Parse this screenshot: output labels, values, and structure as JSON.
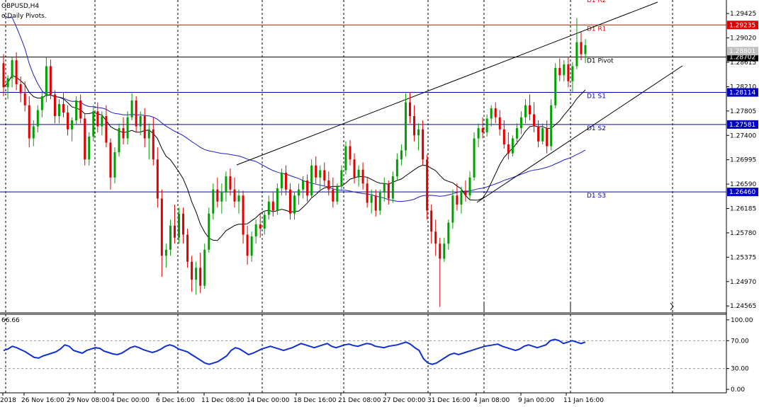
{
  "window": {
    "title": "GBPUSD,H4",
    "indicator_label": "o Daily Pivots.",
    "rsi_value_label": "66.66"
  },
  "colors": {
    "bull": "#00a000",
    "bear": "#e00000",
    "pivot_red": "#e00000",
    "pivot_blue": "#0000c0",
    "ma_blue": "#2020c0",
    "ma_black": "#000000",
    "rsi": "#1030d0",
    "grid": "#000000"
  },
  "chart_data": {
    "type": "candlestick",
    "symbol": "GBPUSD",
    "timeframe": "H4",
    "ylim": [
      1.2445,
      1.2965
    ],
    "price_ticks": [
      "1.29425",
      "1.29020",
      "1.28615",
      "1.28210",
      "1.27805",
      "1.27400",
      "1.26995",
      "1.26590",
      "1.26185",
      "1.25780",
      "1.25375",
      "1.24970",
      "1.24565"
    ],
    "time_labels": [
      "2018",
      "26 Nov 16:00",
      "29 Nov 08:00",
      "4 Dec 00:00",
      "6 Dec 16:00",
      "11 Dec 08:00",
      "14 Dec 00:00",
      "18 Dec 16:00",
      "21 Dec 08:00",
      "27 Dec 00:00",
      "31 Dec 16:00",
      "4 Jan 08:00",
      "9 Jan 00:00",
      "11 Jan 16:00"
    ],
    "pivots": [
      {
        "name": "D1 R2",
        "value": "",
        "price": 1.2982,
        "color": "red",
        "label_only": true
      },
      {
        "name": "D1 R1",
        "value": "1.29235",
        "price": 1.29235,
        "color": "red"
      },
      {
        "name": "D1 Pivot",
        "value": "1.28702",
        "price": 1.28702,
        "color": "black"
      },
      {
        "name": "D1 S1",
        "value": "1.28114",
        "price": 1.28114,
        "color": "blue"
      },
      {
        "name": "D1 S2",
        "value": "1.27581",
        "price": 1.27581,
        "color": "blue"
      },
      {
        "name": "D1 S3",
        "value": "1.26460",
        "price": 1.2646,
        "color": "blue"
      }
    ],
    "current_price": "1.28801",
    "rsi": {
      "ylim": [
        -5,
        108
      ],
      "ticks": [
        "100.00",
        "70.00",
        "30.00",
        "0.00"
      ],
      "levels": [
        70,
        30
      ],
      "values": [
        56,
        58,
        62,
        60,
        57,
        54,
        50,
        46,
        45,
        48,
        50,
        52,
        54,
        58,
        64,
        62,
        56,
        54,
        52,
        56,
        58,
        60,
        59,
        55,
        53,
        51,
        50,
        52,
        56,
        60,
        62,
        60,
        57,
        55,
        53,
        55,
        58,
        62,
        64,
        62,
        58,
        56,
        54,
        50,
        46,
        42,
        38,
        36,
        38,
        40,
        44,
        48,
        56,
        60,
        58,
        54,
        50,
        52,
        55,
        58,
        60,
        62,
        60,
        58,
        56,
        58,
        60,
        63,
        66,
        64,
        62,
        60,
        62,
        64,
        66,
        62,
        60,
        62,
        64,
        65,
        63,
        62,
        64,
        66,
        65,
        62,
        61,
        60,
        62,
        63,
        64,
        66,
        68,
        65,
        60,
        56,
        44,
        38,
        36,
        38,
        42,
        46,
        50,
        52,
        50,
        52,
        54,
        56,
        58,
        60,
        62,
        63,
        64,
        65,
        62,
        60,
        58,
        56,
        58,
        62,
        64,
        62,
        60,
        62,
        64,
        70,
        72,
        70,
        66,
        68,
        70,
        68,
        66,
        68
      ],
      "current": "66.66"
    },
    "candles": [
      {
        "o": 1.286,
        "h": 1.2875,
        "l": 1.2805,
        "c": 1.282
      },
      {
        "o": 1.282,
        "h": 1.284,
        "l": 1.28,
        "c": 1.2835
      },
      {
        "o": 1.2835,
        "h": 1.287,
        "l": 1.282,
        "c": 1.2865
      },
      {
        "o": 1.2865,
        "h": 1.2878,
        "l": 1.2815,
        "c": 1.2825
      },
      {
        "o": 1.2825,
        "h": 1.2838,
        "l": 1.2795,
        "c": 1.281
      },
      {
        "o": 1.281,
        "h": 1.283,
        "l": 1.278,
        "c": 1.279
      },
      {
        "o": 1.279,
        "h": 1.2805,
        "l": 1.272,
        "c": 1.2735
      },
      {
        "o": 1.2735,
        "h": 1.2765,
        "l": 1.2722,
        "c": 1.2755
      },
      {
        "o": 1.2755,
        "h": 1.279,
        "l": 1.2745,
        "c": 1.2782
      },
      {
        "o": 1.2782,
        "h": 1.2815,
        "l": 1.277,
        "c": 1.2805
      },
      {
        "o": 1.2805,
        "h": 1.287,
        "l": 1.2795,
        "c": 1.2855
      },
      {
        "o": 1.2855,
        "h": 1.2866,
        "l": 1.28,
        "c": 1.2808
      },
      {
        "o": 1.2808,
        "h": 1.2815,
        "l": 1.276,
        "c": 1.2772
      },
      {
        "o": 1.2772,
        "h": 1.28,
        "l": 1.276,
        "c": 1.2792
      },
      {
        "o": 1.2792,
        "h": 1.2812,
        "l": 1.277,
        "c": 1.2778
      },
      {
        "o": 1.2778,
        "h": 1.279,
        "l": 1.274,
        "c": 1.275
      },
      {
        "o": 1.275,
        "h": 1.277,
        "l": 1.273,
        "c": 1.2765
      },
      {
        "o": 1.2765,
        "h": 1.2805,
        "l": 1.2758,
        "c": 1.2798
      },
      {
        "o": 1.2798,
        "h": 1.2808,
        "l": 1.276,
        "c": 1.2768
      },
      {
        "o": 1.2768,
        "h": 1.2775,
        "l": 1.269,
        "c": 1.27
      },
      {
        "o": 1.27,
        "h": 1.2745,
        "l": 1.269,
        "c": 1.2738
      },
      {
        "o": 1.2738,
        "h": 1.279,
        "l": 1.273,
        "c": 1.278
      },
      {
        "o": 1.278,
        "h": 1.2795,
        "l": 1.2745,
        "c": 1.2755
      },
      {
        "o": 1.2755,
        "h": 1.278,
        "l": 1.274,
        "c": 1.2772
      },
      {
        "o": 1.2772,
        "h": 1.279,
        "l": 1.272,
        "c": 1.2728
      },
      {
        "o": 1.2728,
        "h": 1.2735,
        "l": 1.265,
        "c": 1.267
      },
      {
        "o": 1.267,
        "h": 1.272,
        "l": 1.266,
        "c": 1.2712
      },
      {
        "o": 1.2712,
        "h": 1.276,
        "l": 1.2705,
        "c": 1.2752
      },
      {
        "o": 1.2752,
        "h": 1.277,
        "l": 1.2725,
        "c": 1.2735
      },
      {
        "o": 1.2735,
        "h": 1.278,
        "l": 1.2725,
        "c": 1.277
      },
      {
        "o": 1.277,
        "h": 1.281,
        "l": 1.2765,
        "c": 1.2798
      },
      {
        "o": 1.2798,
        "h": 1.2805,
        "l": 1.2745,
        "c": 1.2755
      },
      {
        "o": 1.2755,
        "h": 1.278,
        "l": 1.274,
        "c": 1.2772
      },
      {
        "o": 1.2772,
        "h": 1.2785,
        "l": 1.272,
        "c": 1.2735
      },
      {
        "o": 1.2735,
        "h": 1.276,
        "l": 1.27,
        "c": 1.275
      },
      {
        "o": 1.275,
        "h": 1.277,
        "l": 1.269,
        "c": 1.27
      },
      {
        "o": 1.27,
        "h": 1.272,
        "l": 1.262,
        "c": 1.2635
      },
      {
        "o": 1.2635,
        "h": 1.265,
        "l": 1.2505,
        "c": 1.254
      },
      {
        "o": 1.254,
        "h": 1.256,
        "l": 1.252,
        "c": 1.255
      },
      {
        "o": 1.255,
        "h": 1.26,
        "l": 1.254,
        "c": 1.259
      },
      {
        "o": 1.259,
        "h": 1.2625,
        "l": 1.256,
        "c": 1.257
      },
      {
        "o": 1.257,
        "h": 1.262,
        "l": 1.256,
        "c": 1.261
      },
      {
        "o": 1.261,
        "h": 1.262,
        "l": 1.256,
        "c": 1.2575
      },
      {
        "o": 1.2575,
        "h": 1.2585,
        "l": 1.252,
        "c": 1.253
      },
      {
        "o": 1.253,
        "h": 1.254,
        "l": 1.248,
        "c": 1.25
      },
      {
        "o": 1.25,
        "h": 1.253,
        "l": 1.2475,
        "c": 1.252
      },
      {
        "o": 1.252,
        "h": 1.2545,
        "l": 1.2478,
        "c": 1.249
      },
      {
        "o": 1.249,
        "h": 1.256,
        "l": 1.2485,
        "c": 1.255
      },
      {
        "o": 1.255,
        "h": 1.262,
        "l": 1.2545,
        "c": 1.261
      },
      {
        "o": 1.261,
        "h": 1.266,
        "l": 1.26,
        "c": 1.265
      },
      {
        "o": 1.265,
        "h": 1.267,
        "l": 1.262,
        "c": 1.263
      },
      {
        "o": 1.263,
        "h": 1.266,
        "l": 1.261,
        "c": 1.2645
      },
      {
        "o": 1.2645,
        "h": 1.268,
        "l": 1.263,
        "c": 1.2672
      },
      {
        "o": 1.2672,
        "h": 1.2685,
        "l": 1.264,
        "c": 1.265
      },
      {
        "o": 1.265,
        "h": 1.267,
        "l": 1.262,
        "c": 1.263
      },
      {
        "o": 1.263,
        "h": 1.265,
        "l": 1.261,
        "c": 1.264
      },
      {
        "o": 1.264,
        "h": 1.2648,
        "l": 1.256,
        "c": 1.2575
      },
      {
        "o": 1.2575,
        "h": 1.259,
        "l": 1.2525,
        "c": 1.254
      },
      {
        "o": 1.254,
        "h": 1.258,
        "l": 1.253,
        "c": 1.2572
      },
      {
        "o": 1.2572,
        "h": 1.26,
        "l": 1.256,
        "c": 1.2592
      },
      {
        "o": 1.2592,
        "h": 1.261,
        "l": 1.257,
        "c": 1.2585
      },
      {
        "o": 1.2585,
        "h": 1.2615,
        "l": 1.2575,
        "c": 1.2608
      },
      {
        "o": 1.2608,
        "h": 1.264,
        "l": 1.26,
        "c": 1.263
      },
      {
        "o": 1.263,
        "h": 1.2645,
        "l": 1.2605,
        "c": 1.2615
      },
      {
        "o": 1.2615,
        "h": 1.266,
        "l": 1.2608,
        "c": 1.2652
      },
      {
        "o": 1.2652,
        "h": 1.2685,
        "l": 1.264,
        "c": 1.2678
      },
      {
        "o": 1.2678,
        "h": 1.269,
        "l": 1.264,
        "c": 1.265
      },
      {
        "o": 1.265,
        "h": 1.266,
        "l": 1.26,
        "c": 1.261
      },
      {
        "o": 1.261,
        "h": 1.2645,
        "l": 1.26,
        "c": 1.264
      },
      {
        "o": 1.264,
        "h": 1.266,
        "l": 1.2625,
        "c": 1.265
      },
      {
        "o": 1.265,
        "h": 1.2672,
        "l": 1.2635,
        "c": 1.2665
      },
      {
        "o": 1.2665,
        "h": 1.2675,
        "l": 1.263,
        "c": 1.264
      },
      {
        "o": 1.264,
        "h": 1.27,
        "l": 1.2635,
        "c": 1.269
      },
      {
        "o": 1.269,
        "h": 1.2705,
        "l": 1.266,
        "c": 1.267
      },
      {
        "o": 1.267,
        "h": 1.269,
        "l": 1.265,
        "c": 1.2682
      },
      {
        "o": 1.2682,
        "h": 1.2695,
        "l": 1.2655,
        "c": 1.2665
      },
      {
        "o": 1.2665,
        "h": 1.268,
        "l": 1.264,
        "c": 1.265
      },
      {
        "o": 1.265,
        "h": 1.267,
        "l": 1.262,
        "c": 1.263
      },
      {
        "o": 1.263,
        "h": 1.266,
        "l": 1.2625,
        "c": 1.2655
      },
      {
        "o": 1.2655,
        "h": 1.269,
        "l": 1.2648,
        "c": 1.2682
      },
      {
        "o": 1.2682,
        "h": 1.273,
        "l": 1.2675,
        "c": 1.2722
      },
      {
        "o": 1.2722,
        "h": 1.2732,
        "l": 1.269,
        "c": 1.27
      },
      {
        "o": 1.27,
        "h": 1.271,
        "l": 1.266,
        "c": 1.267
      },
      {
        "o": 1.267,
        "h": 1.269,
        "l": 1.2655,
        "c": 1.2683
      },
      {
        "o": 1.2683,
        "h": 1.2695,
        "l": 1.265,
        "c": 1.266
      },
      {
        "o": 1.266,
        "h": 1.267,
        "l": 1.262,
        "c": 1.2628
      },
      {
        "o": 1.2628,
        "h": 1.265,
        "l": 1.261,
        "c": 1.264
      },
      {
        "o": 1.264,
        "h": 1.265,
        "l": 1.2605,
        "c": 1.2615
      },
      {
        "o": 1.2615,
        "h": 1.265,
        "l": 1.2608,
        "c": 1.2645
      },
      {
        "o": 1.2645,
        "h": 1.267,
        "l": 1.263,
        "c": 1.266
      },
      {
        "o": 1.266,
        "h": 1.2665,
        "l": 1.2625,
        "c": 1.2635
      },
      {
        "o": 1.2635,
        "h": 1.268,
        "l": 1.2628,
        "c": 1.2672
      },
      {
        "o": 1.2672,
        "h": 1.271,
        "l": 1.2665,
        "c": 1.27
      },
      {
        "o": 1.27,
        "h": 1.2725,
        "l": 1.269,
        "c": 1.2715
      },
      {
        "o": 1.2715,
        "h": 1.281,
        "l": 1.2705,
        "c": 1.2795
      },
      {
        "o": 1.2795,
        "h": 1.2812,
        "l": 1.276,
        "c": 1.2772
      },
      {
        "o": 1.2772,
        "h": 1.279,
        "l": 1.273,
        "c": 1.274
      },
      {
        "o": 1.274,
        "h": 1.276,
        "l": 1.2715,
        "c": 1.275
      },
      {
        "o": 1.275,
        "h": 1.2765,
        "l": 1.269,
        "c": 1.27
      },
      {
        "o": 1.27,
        "h": 1.2708,
        "l": 1.26,
        "c": 1.2615
      },
      {
        "o": 1.2615,
        "h": 1.2625,
        "l": 1.256,
        "c": 1.258
      },
      {
        "o": 1.258,
        "h": 1.26,
        "l": 1.254,
        "c": 1.256
      },
      {
        "o": 1.256,
        "h": 1.257,
        "l": 1.2455,
        "c": 1.2535
      },
      {
        "o": 1.2535,
        "h": 1.257,
        "l": 1.253,
        "c": 1.256
      },
      {
        "o": 1.256,
        "h": 1.26,
        "l": 1.255,
        "c": 1.2595
      },
      {
        "o": 1.2595,
        "h": 1.265,
        "l": 1.2585,
        "c": 1.264
      },
      {
        "o": 1.264,
        "h": 1.266,
        "l": 1.2615,
        "c": 1.2625
      },
      {
        "o": 1.2625,
        "h": 1.2655,
        "l": 1.261,
        "c": 1.2648
      },
      {
        "o": 1.2648,
        "h": 1.2665,
        "l": 1.263,
        "c": 1.264
      },
      {
        "o": 1.264,
        "h": 1.268,
        "l": 1.2632,
        "c": 1.267
      },
      {
        "o": 1.267,
        "h": 1.2745,
        "l": 1.2665,
        "c": 1.2735
      },
      {
        "o": 1.2735,
        "h": 1.276,
        "l": 1.272,
        "c": 1.2752
      },
      {
        "o": 1.2752,
        "h": 1.277,
        "l": 1.2735,
        "c": 1.2745
      },
      {
        "o": 1.2745,
        "h": 1.2775,
        "l": 1.2738,
        "c": 1.2768
      },
      {
        "o": 1.2768,
        "h": 1.279,
        "l": 1.2755,
        "c": 1.2785
      },
      {
        "o": 1.2785,
        "h": 1.2795,
        "l": 1.276,
        "c": 1.277
      },
      {
        "o": 1.277,
        "h": 1.2782,
        "l": 1.274,
        "c": 1.275
      },
      {
        "o": 1.275,
        "h": 1.2765,
        "l": 1.2718,
        "c": 1.2725
      },
      {
        "o": 1.2725,
        "h": 1.2745,
        "l": 1.27,
        "c": 1.271
      },
      {
        "o": 1.271,
        "h": 1.274,
        "l": 1.2705,
        "c": 1.2735
      },
      {
        "o": 1.2735,
        "h": 1.276,
        "l": 1.2725,
        "c": 1.2752
      },
      {
        "o": 1.2752,
        "h": 1.278,
        "l": 1.2742,
        "c": 1.277
      },
      {
        "o": 1.277,
        "h": 1.28,
        "l": 1.276,
        "c": 1.279
      },
      {
        "o": 1.279,
        "h": 1.2808,
        "l": 1.2765,
        "c": 1.2775
      },
      {
        "o": 1.2775,
        "h": 1.2795,
        "l": 1.2745,
        "c": 1.2755
      },
      {
        "o": 1.2755,
        "h": 1.2765,
        "l": 1.272,
        "c": 1.273
      },
      {
        "o": 1.273,
        "h": 1.276,
        "l": 1.2725,
        "c": 1.2752
      },
      {
        "o": 1.2752,
        "h": 1.2765,
        "l": 1.271,
        "c": 1.2722
      },
      {
        "o": 1.2722,
        "h": 1.28,
        "l": 1.2715,
        "c": 1.279
      },
      {
        "o": 1.279,
        "h": 1.286,
        "l": 1.2785,
        "c": 1.2852
      },
      {
        "o": 1.2852,
        "h": 1.2868,
        "l": 1.283,
        "c": 1.284
      },
      {
        "o": 1.284,
        "h": 1.2865,
        "l": 1.283,
        "c": 1.2858
      },
      {
        "o": 1.2858,
        "h": 1.287,
        "l": 1.282,
        "c": 1.283
      },
      {
        "o": 1.283,
        "h": 1.2862,
        "l": 1.2812,
        "c": 1.2855
      },
      {
        "o": 1.2855,
        "h": 1.2935,
        "l": 1.285,
        "c": 1.2895
      },
      {
        "o": 1.2895,
        "h": 1.2912,
        "l": 1.2865,
        "c": 1.2875
      },
      {
        "o": 1.2875,
        "h": 1.29,
        "l": 1.286,
        "c": 1.289
      }
    ]
  }
}
